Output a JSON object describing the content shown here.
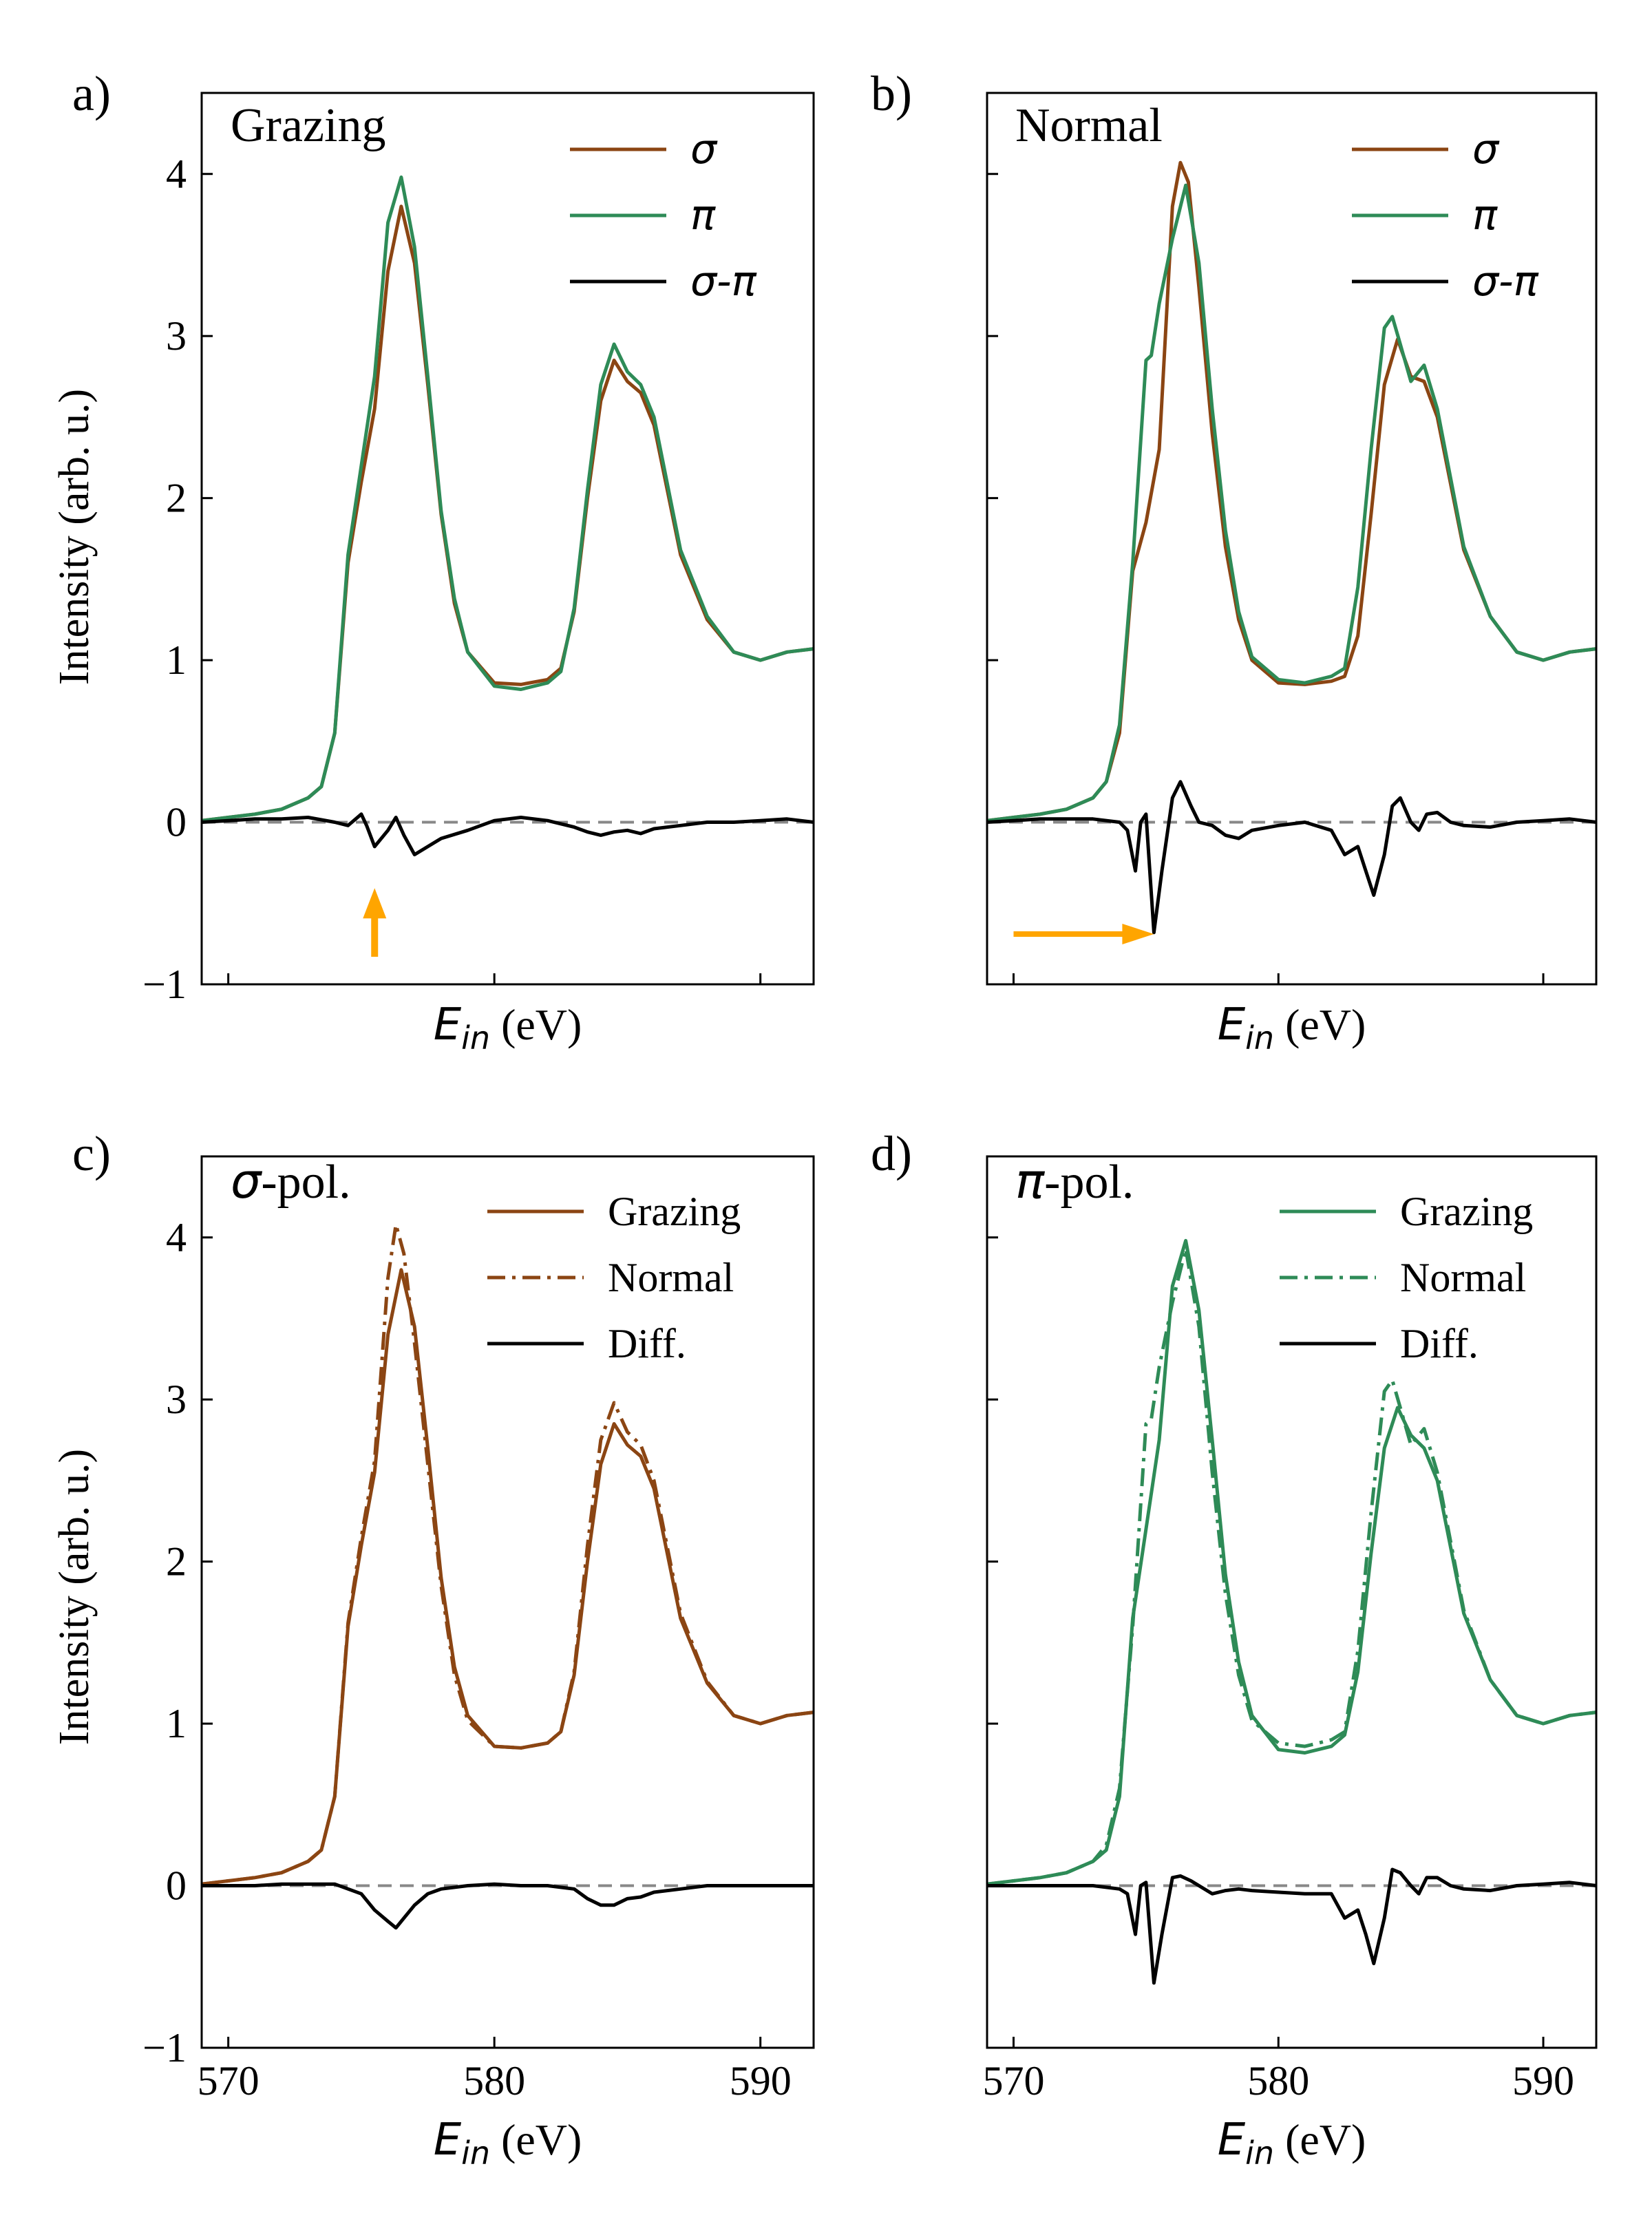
{
  "figure": {
    "colors": {
      "sigma": "#8B4513",
      "pi": "#2E8B57",
      "diff": "#000000",
      "zero": "#888888",
      "arrow": "#FFA500"
    }
  },
  "chart_data": [
    {
      "panel": "a)",
      "type": "line",
      "title": "Grazing",
      "xlabel_main": "E",
      "xlabel_sub": "in",
      "xlabel_unit": " (eV)",
      "ylabel": "Intensity (arb. u.)",
      "xlim": [
        569,
        592
      ],
      "ylim": [
        -1,
        4.5
      ],
      "yticks": [
        "−1",
        "0",
        "1",
        "2",
        "3",
        "4"
      ],
      "xticks": [],
      "legend_position": "top-right",
      "annotation": "up arrow at 575.5 eV",
      "series": [
        {
          "name": "σ",
          "style": "solid",
          "color": "#8B4513",
          "x": [
            569,
            570,
            571,
            572,
            573,
            573.5,
            574,
            574.5,
            575,
            575.5,
            576,
            576.5,
            577,
            577.5,
            578,
            578.5,
            579,
            580,
            581,
            582,
            582.5,
            583,
            583.5,
            584,
            584.5,
            585,
            585.5,
            586,
            587,
            588,
            589,
            590,
            591,
            592
          ],
          "y": [
            0.01,
            0.03,
            0.05,
            0.08,
            0.15,
            0.22,
            0.55,
            1.6,
            2.1,
            2.55,
            3.4,
            3.8,
            3.45,
            2.7,
            1.9,
            1.35,
            1.05,
            0.86,
            0.85,
            0.88,
            0.95,
            1.3,
            2.0,
            2.6,
            2.85,
            2.72,
            2.65,
            2.45,
            1.65,
            1.25,
            1.05,
            1.0,
            1.05,
            1.07
          ]
        },
        {
          "name": "π",
          "style": "solid",
          "color": "#2E8B57",
          "x": [
            569,
            570,
            571,
            572,
            573,
            573.5,
            574,
            574.5,
            575,
            575.5,
            576,
            576.5,
            577,
            577.5,
            578,
            578.5,
            579,
            580,
            581,
            582,
            582.5,
            583,
            583.5,
            584,
            584.5,
            585,
            585.5,
            586,
            587,
            588,
            589,
            590,
            591,
            592
          ],
          "y": [
            0.01,
            0.03,
            0.05,
            0.08,
            0.15,
            0.22,
            0.55,
            1.65,
            2.2,
            2.75,
            3.7,
            3.98,
            3.55,
            2.75,
            1.92,
            1.38,
            1.05,
            0.84,
            0.82,
            0.86,
            0.93,
            1.32,
            2.05,
            2.7,
            2.95,
            2.78,
            2.7,
            2.5,
            1.68,
            1.27,
            1.05,
            1.0,
            1.05,
            1.07
          ]
        },
        {
          "name": "σ-π",
          "style": "solid",
          "color": "#000000",
          "x": [
            569,
            570,
            571,
            572,
            573,
            574,
            574.5,
            575,
            575.2,
            575.5,
            576,
            576.3,
            576.6,
            577,
            577.5,
            578,
            579,
            580,
            581,
            582,
            583,
            583.5,
            584,
            584.5,
            585,
            585.5,
            586,
            587,
            588,
            589,
            590,
            591,
            592
          ],
          "y": [
            0.0,
            0.01,
            0.02,
            0.02,
            0.03,
            0.0,
            -0.02,
            0.05,
            -0.02,
            -0.15,
            -0.05,
            0.03,
            -0.08,
            -0.2,
            -0.15,
            -0.1,
            -0.05,
            0.01,
            0.03,
            0.01,
            -0.03,
            -0.06,
            -0.08,
            -0.06,
            -0.05,
            -0.07,
            -0.04,
            -0.02,
            0.0,
            0.0,
            0.01,
            0.02,
            0.0
          ]
        }
      ]
    },
    {
      "panel": "b)",
      "type": "line",
      "title": "Normal",
      "xlabel_main": "E",
      "xlabel_sub": "in",
      "xlabel_unit": " (eV)",
      "ylabel": "",
      "xlim": [
        569,
        592
      ],
      "ylim": [
        -1,
        4.5
      ],
      "yticks": [],
      "xticks": [],
      "legend_position": "top-right",
      "annotation": "right arrow at -0.7",
      "series": [
        {
          "name": "σ",
          "style": "solid",
          "color": "#8B4513",
          "x": [
            569,
            570,
            571,
            572,
            573,
            573.5,
            574,
            574.5,
            575,
            575.5,
            576,
            576.3,
            576.6,
            577,
            577.5,
            578,
            578.5,
            579,
            580,
            581,
            582,
            582.5,
            583,
            583.5,
            584,
            584.5,
            585,
            585.5,
            586,
            587,
            588,
            589,
            590,
            591,
            592
          ],
          "y": [
            0.01,
            0.03,
            0.05,
            0.08,
            0.15,
            0.25,
            0.55,
            1.55,
            1.85,
            2.3,
            3.8,
            4.07,
            3.95,
            3.3,
            2.4,
            1.7,
            1.25,
            1.0,
            0.86,
            0.85,
            0.87,
            0.9,
            1.15,
            1.9,
            2.7,
            2.98,
            2.75,
            2.72,
            2.5,
            1.68,
            1.27,
            1.05,
            1.0,
            1.05,
            1.07
          ]
        },
        {
          "name": "π",
          "style": "solid",
          "color": "#2E8B57",
          "x": [
            569,
            570,
            571,
            572,
            573,
            573.5,
            574,
            574.5,
            575,
            575.2,
            575.5,
            576,
            576.5,
            577,
            577.5,
            578,
            578.5,
            579,
            580,
            581,
            582,
            582.5,
            583,
            583.5,
            584,
            584.3,
            584.6,
            585,
            585.5,
            586,
            587,
            588,
            589,
            590,
            591,
            592
          ],
          "y": [
            0.01,
            0.03,
            0.05,
            0.08,
            0.15,
            0.25,
            0.6,
            1.6,
            2.85,
            2.88,
            3.2,
            3.6,
            3.93,
            3.45,
            2.55,
            1.8,
            1.3,
            1.02,
            0.88,
            0.86,
            0.9,
            0.95,
            1.45,
            2.3,
            3.05,
            3.12,
            2.95,
            2.72,
            2.82,
            2.55,
            1.7,
            1.27,
            1.05,
            1.0,
            1.05,
            1.07
          ]
        },
        {
          "name": "σ-π",
          "style": "solid",
          "color": "#000000",
          "x": [
            569,
            570,
            571,
            572,
            573,
            574,
            574.3,
            574.6,
            574.8,
            575,
            575.3,
            575.6,
            576,
            576.3,
            576.7,
            577,
            577.5,
            578,
            578.5,
            579,
            580,
            581,
            582,
            582.5,
            583,
            583.3,
            583.6,
            584,
            584.3,
            584.6,
            585,
            585.3,
            585.6,
            586,
            586.5,
            587,
            588,
            589,
            590,
            591,
            592
          ],
          "y": [
            0.0,
            0.01,
            0.02,
            0.02,
            0.02,
            0.0,
            -0.05,
            -0.3,
            0.0,
            0.05,
            -0.68,
            -0.3,
            0.15,
            0.25,
            0.1,
            0.0,
            -0.02,
            -0.08,
            -0.1,
            -0.05,
            -0.02,
            0.0,
            -0.05,
            -0.2,
            -0.15,
            -0.3,
            -0.45,
            -0.2,
            0.1,
            0.15,
            0.0,
            -0.05,
            0.05,
            0.06,
            0.0,
            -0.02,
            -0.03,
            0.0,
            0.01,
            0.02,
            0.0
          ]
        }
      ]
    },
    {
      "panel": "c)",
      "type": "line",
      "title": "σ-pol.",
      "xlabel_main": "E",
      "xlabel_sub": "in",
      "xlabel_unit": " (eV)",
      "ylabel": "Intensity (arb. u.)",
      "xlim": [
        569,
        592
      ],
      "ylim": [
        -1,
        4.5
      ],
      "yticks": [
        "−1",
        "0",
        "1",
        "2",
        "3",
        "4"
      ],
      "xticks": [
        "570",
        "580",
        "590"
      ],
      "legend_position": "top-right",
      "series": [
        {
          "name": "Grazing",
          "style": "solid",
          "color": "#8B4513",
          "x": [
            569,
            570,
            571,
            572,
            573,
            573.5,
            574,
            574.5,
            575,
            575.5,
            576,
            576.5,
            577,
            577.5,
            578,
            578.5,
            579,
            580,
            581,
            582,
            582.5,
            583,
            583.5,
            584,
            584.5,
            585,
            585.5,
            586,
            587,
            588,
            589,
            590,
            591,
            592
          ],
          "y": [
            0.01,
            0.03,
            0.05,
            0.08,
            0.15,
            0.22,
            0.55,
            1.6,
            2.1,
            2.55,
            3.4,
            3.8,
            3.45,
            2.7,
            1.9,
            1.35,
            1.05,
            0.86,
            0.85,
            0.88,
            0.95,
            1.3,
            2.0,
            2.6,
            2.85,
            2.72,
            2.65,
            2.45,
            1.65,
            1.25,
            1.05,
            1.0,
            1.05,
            1.07
          ]
        },
        {
          "name": "Normal",
          "style": "dashdot",
          "color": "#8B4513",
          "x": [
            569,
            570,
            571,
            572,
            573,
            573.5,
            574,
            574.5,
            575,
            575.5,
            576,
            576.3,
            576.6,
            577,
            577.5,
            578,
            578.5,
            579,
            580,
            581,
            582,
            582.5,
            583,
            583.5,
            584,
            584.5,
            585,
            585.5,
            586,
            587,
            588,
            589,
            590,
            591,
            592
          ],
          "y": [
            0.01,
            0.03,
            0.05,
            0.08,
            0.15,
            0.22,
            0.55,
            1.62,
            2.15,
            2.62,
            3.75,
            4.08,
            3.9,
            3.35,
            2.6,
            1.85,
            1.3,
            1.02,
            0.86,
            0.85,
            0.88,
            0.95,
            1.32,
            2.1,
            2.75,
            2.98,
            2.8,
            2.72,
            2.5,
            1.68,
            1.26,
            1.05,
            1.0,
            1.05,
            1.07
          ]
        },
        {
          "name": "Diff.",
          "style": "solid",
          "color": "#000000",
          "x": [
            569,
            570,
            571,
            572,
            573,
            574,
            575,
            575.5,
            576,
            576.3,
            576.6,
            577,
            577.5,
            578,
            579,
            580,
            581,
            582,
            583,
            583.5,
            584,
            584.5,
            585,
            585.5,
            586,
            587,
            588,
            589,
            590,
            591,
            592
          ],
          "y": [
            0.0,
            0.0,
            0.0,
            0.01,
            0.01,
            0.01,
            -0.05,
            -0.15,
            -0.22,
            -0.26,
            -0.2,
            -0.12,
            -0.05,
            -0.02,
            0.0,
            0.01,
            0.0,
            0.0,
            -0.02,
            -0.08,
            -0.12,
            -0.12,
            -0.08,
            -0.07,
            -0.04,
            -0.02,
            0.0,
            0.0,
            0.0,
            0.0,
            0.0
          ]
        }
      ]
    },
    {
      "panel": "d)",
      "type": "line",
      "title": "π-pol.",
      "xlabel_main": "E",
      "xlabel_sub": "in",
      "xlabel_unit": " (eV)",
      "ylabel": "",
      "xlim": [
        569,
        592
      ],
      "ylim": [
        -1,
        4.5
      ],
      "yticks": [],
      "xticks": [
        "570",
        "580",
        "590"
      ],
      "legend_position": "top-right",
      "series": [
        {
          "name": "Grazing",
          "style": "solid",
          "color": "#2E8B57",
          "x": [
            569,
            570,
            571,
            572,
            573,
            573.5,
            574,
            574.5,
            575,
            575.5,
            576,
            576.5,
            577,
            577.5,
            578,
            578.5,
            579,
            580,
            581,
            582,
            582.5,
            583,
            583.5,
            584,
            584.5,
            585,
            585.5,
            586,
            587,
            588,
            589,
            590,
            591,
            592
          ],
          "y": [
            0.01,
            0.03,
            0.05,
            0.08,
            0.15,
            0.22,
            0.55,
            1.65,
            2.2,
            2.75,
            3.7,
            3.98,
            3.55,
            2.75,
            1.92,
            1.38,
            1.05,
            0.84,
            0.82,
            0.86,
            0.93,
            1.32,
            2.05,
            2.7,
            2.95,
            2.78,
            2.7,
            2.5,
            1.68,
            1.27,
            1.05,
            1.0,
            1.05,
            1.07
          ]
        },
        {
          "name": "Normal",
          "style": "dashdot",
          "color": "#2E8B57",
          "x": [
            569,
            570,
            571,
            572,
            573,
            573.5,
            574,
            574.5,
            575,
            575.2,
            575.5,
            576,
            576.5,
            577,
            577.5,
            578,
            578.5,
            579,
            580,
            581,
            582,
            582.5,
            583,
            583.5,
            584,
            584.3,
            584.6,
            585,
            585.5,
            586,
            587,
            588,
            589,
            590,
            591,
            592
          ],
          "y": [
            0.01,
            0.03,
            0.05,
            0.08,
            0.15,
            0.25,
            0.6,
            1.6,
            2.85,
            2.88,
            3.2,
            3.6,
            3.93,
            3.45,
            2.55,
            1.8,
            1.3,
            1.02,
            0.88,
            0.86,
            0.9,
            0.95,
            1.45,
            2.3,
            3.05,
            3.12,
            2.95,
            2.72,
            2.82,
            2.55,
            1.7,
            1.27,
            1.05,
            1.0,
            1.05,
            1.07
          ]
        },
        {
          "name": "Diff.",
          "style": "solid",
          "color": "#000000",
          "x": [
            569,
            570,
            571,
            572,
            573,
            574,
            574.3,
            574.6,
            574.8,
            575,
            575.3,
            575.6,
            576,
            576.3,
            576.7,
            577,
            577.5,
            578,
            578.5,
            579,
            580,
            581,
            582,
            582.5,
            583,
            583.3,
            583.6,
            584,
            584.3,
            584.6,
            585,
            585.3,
            585.6,
            586,
            586.5,
            587,
            588,
            589,
            590,
            591,
            592
          ],
          "y": [
            0.0,
            0.0,
            0.0,
            0.0,
            0.0,
            -0.02,
            -0.05,
            -0.3,
            0.0,
            0.02,
            -0.6,
            -0.3,
            0.05,
            0.06,
            0.03,
            0.0,
            -0.05,
            -0.03,
            -0.02,
            -0.03,
            -0.04,
            -0.05,
            -0.05,
            -0.2,
            -0.15,
            -0.3,
            -0.48,
            -0.2,
            0.1,
            0.08,
            0.0,
            -0.05,
            0.05,
            0.05,
            0.0,
            -0.02,
            -0.03,
            0.0,
            0.01,
            0.02,
            0.0
          ]
        }
      ]
    }
  ]
}
